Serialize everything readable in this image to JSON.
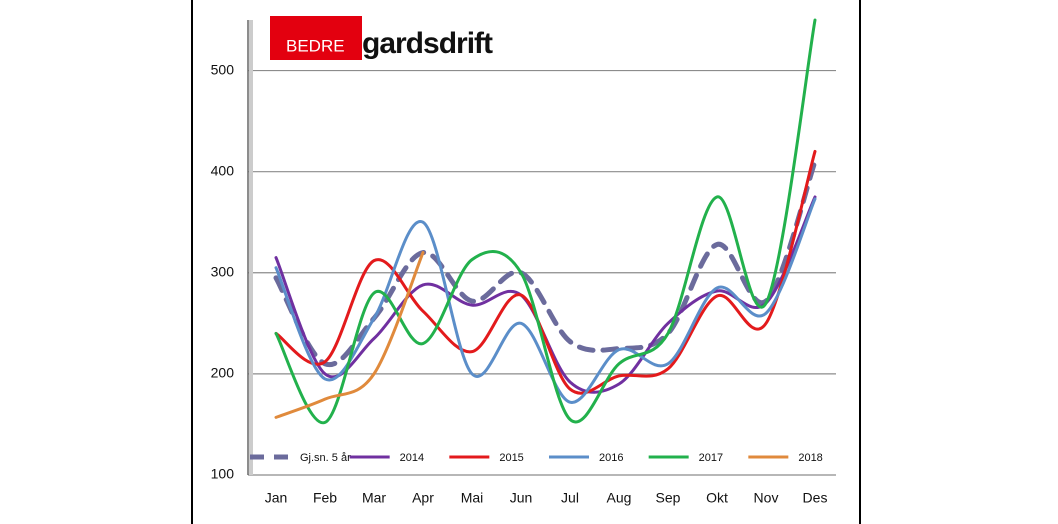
{
  "chart_data": {
    "type": "line",
    "logo": {
      "prefix": "BEDRE",
      "name": "gardsdrift"
    },
    "categories": [
      "Jan",
      "Feb",
      "Mar",
      "Apr",
      "Mai",
      "Jun",
      "Jul",
      "Aug",
      "Sep",
      "Okt",
      "Nov",
      "Des"
    ],
    "series": [
      {
        "name": "Gj.sn. 5 år",
        "color": "#6b6b9c",
        "dashed": true,
        "values": [
          295,
          210,
          255,
          320,
          272,
          300,
          232,
          225,
          240,
          328,
          272,
          410
        ]
      },
      {
        "name": "2014",
        "color": "#7030a0",
        "values": [
          315,
          200,
          235,
          288,
          268,
          278,
          192,
          190,
          250,
          282,
          270,
          375
        ]
      },
      {
        "name": "2015",
        "color": "#e31a1c",
        "values": [
          240,
          212,
          312,
          262,
          222,
          278,
          185,
          198,
          205,
          277,
          250,
          420
        ]
      },
      {
        "name": "2016",
        "color": "#5b8ec9",
        "values": [
          305,
          195,
          255,
          350,
          200,
          250,
          172,
          224,
          210,
          285,
          260,
          373
        ]
      },
      {
        "name": "2017",
        "color": "#22b14c",
        "values": [
          240,
          152,
          280,
          230,
          313,
          300,
          155,
          210,
          240,
          375,
          270,
          550
        ]
      },
      {
        "name": "2018",
        "color": "#e08a3c",
        "values": [
          157,
          175,
          200,
          320,
          null,
          null,
          null,
          null,
          null,
          null,
          null,
          null
        ]
      }
    ],
    "ylim": [
      100,
      550
    ],
    "yticks": [
      100,
      200,
      300,
      400,
      500
    ],
    "grid": true,
    "smooth": true,
    "legend": "bottom"
  }
}
